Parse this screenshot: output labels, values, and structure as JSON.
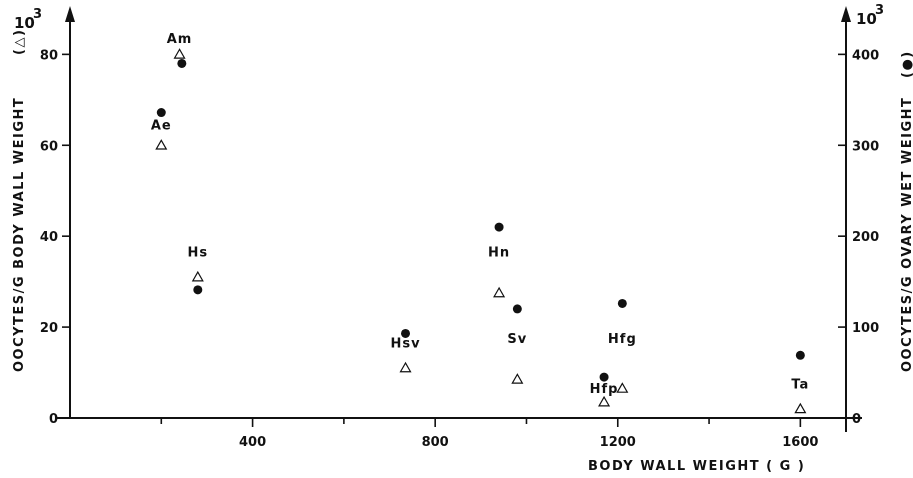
{
  "chart_data": {
    "type": "scatter",
    "xlabel": "BODY WALL WEIGHT ( G )",
    "ylabel_left": "OOCYTES/G BODY WALL WEIGHT",
    "ylabel_left_symbol": "(△)",
    "ylabel_right": "OOCYTES/G OVARY WET WEIGHT",
    "ylabel_right_symbol": "(●)",
    "y_left_multiplier": "10",
    "y_right_multiplier": "10",
    "multiplier_exponent": "3",
    "xlim": [
      0,
      1700
    ],
    "ylim_left": [
      0,
      88
    ],
    "ylim_right": [
      0,
      440
    ],
    "x_ticks": [
      400,
      800,
      1200,
      1600
    ],
    "x_minor_ticks": [
      200,
      600,
      1000,
      1400
    ],
    "x_tick_labels": [
      "400",
      "800",
      "1200",
      "1600"
    ],
    "y_left_ticks": [
      0,
      20,
      40,
      60,
      80
    ],
    "y_left_tick_labels": [
      "0",
      "20",
      "40",
      "60",
      "80"
    ],
    "y_right_ticks": [
      0,
      100,
      200,
      300,
      400
    ],
    "y_right_tick_labels": [
      "0",
      "100",
      "200",
      "300",
      "400"
    ],
    "grid": false,
    "series": [
      {
        "symbol": "△",
        "axis": "left",
        "points": [
          {
            "x": 240,
            "y": 80
          },
          {
            "x": 200,
            "y": 60
          },
          {
            "x": 280,
            "y": 31
          },
          {
            "x": 735,
            "y": 11
          },
          {
            "x": 940,
            "y": 27.5
          },
          {
            "x": 980,
            "y": 8.5
          },
          {
            "x": 1170,
            "y": 3.5
          },
          {
            "x": 1210,
            "y": 6.5
          },
          {
            "x": 1600,
            "y": 2
          }
        ]
      },
      {
        "symbol": "●",
        "axis": "right",
        "points": [
          {
            "x": 245,
            "y": 390
          },
          {
            "x": 200,
            "y": 336
          },
          {
            "x": 280,
            "y": 141
          },
          {
            "x": 735,
            "y": 93
          },
          {
            "x": 940,
            "y": 210
          },
          {
            "x": 980,
            "y": 120
          },
          {
            "x": 1170,
            "y": 45
          },
          {
            "x": 1210,
            "y": 126
          },
          {
            "x": 1600,
            "y": 69
          }
        ]
      }
    ],
    "point_labels": [
      {
        "text": "Am",
        "x": 240,
        "y": 82.5
      },
      {
        "text": "Ae",
        "x": 200,
        "y": 63.5
      },
      {
        "text": "Hs",
        "x": 280,
        "y": 35.5
      },
      {
        "text": "Hsv",
        "x": 735,
        "y": 15.5
      },
      {
        "text": "Hn",
        "x": 940,
        "y": 35.5
      },
      {
        "text": "Sv",
        "x": 980,
        "y": 16.5
      },
      {
        "text": "Hfg",
        "x": 1210,
        "y": 16.5
      },
      {
        "text": "Hfp",
        "x": 1170,
        "y": 5.5
      },
      {
        "text": "Ta",
        "x": 1600,
        "y": 6.5
      }
    ]
  }
}
